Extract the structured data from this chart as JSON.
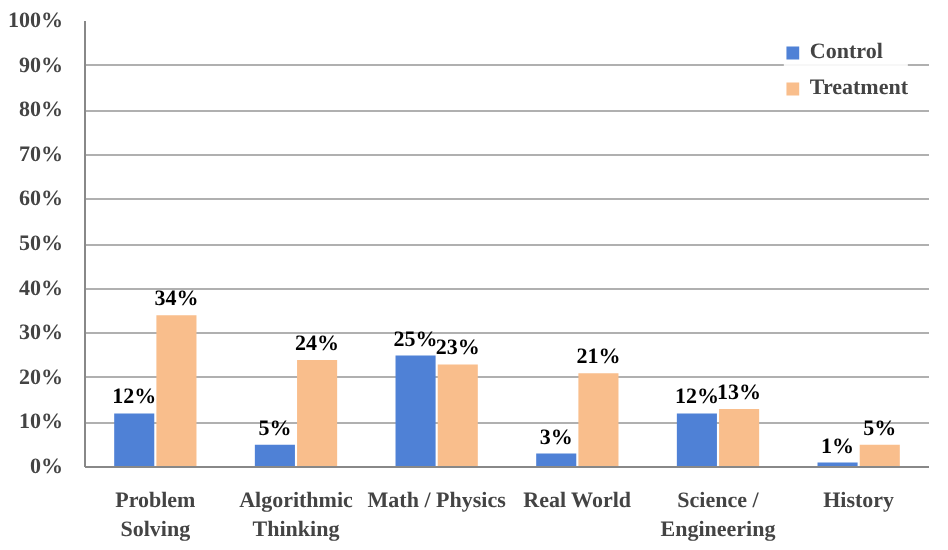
{
  "chart_data": {
    "type": "bar",
    "categories": [
      "Problem\nSolving",
      "Algorithmic\nThinking",
      "Math / Physics",
      "Real World",
      "Science /\nEngineering",
      "History"
    ],
    "series": [
      {
        "name": "Control",
        "color": "#4f81d6",
        "values": [
          12,
          5,
          25,
          3,
          12,
          1
        ],
        "value_labels": [
          "12%",
          "5%",
          "25%",
          "3%",
          "12%",
          "1%"
        ]
      },
      {
        "name": "Treatment",
        "color": "#f9be8c",
        "values": [
          34,
          24,
          23,
          21,
          13,
          5
        ],
        "value_labels": [
          "34%",
          "24%",
          "23%",
          "21%",
          "13%",
          "5%"
        ]
      }
    ],
    "ylim": [
      0,
      100
    ],
    "yticks": [
      {
        "value": 0,
        "label": "0%"
      },
      {
        "value": 10,
        "label": "10%"
      },
      {
        "value": 20,
        "label": "20%"
      },
      {
        "value": 30,
        "label": "30%"
      },
      {
        "value": 40,
        "label": "40%"
      },
      {
        "value": 50,
        "label": "50%"
      },
      {
        "value": 60,
        "label": "60%"
      },
      {
        "value": 70,
        "label": "70%"
      },
      {
        "value": 80,
        "label": "80%"
      },
      {
        "value": 90,
        "label": "90%"
      },
      {
        "value": 100,
        "label": "100%"
      }
    ],
    "grid": "y",
    "legend": "top right"
  }
}
